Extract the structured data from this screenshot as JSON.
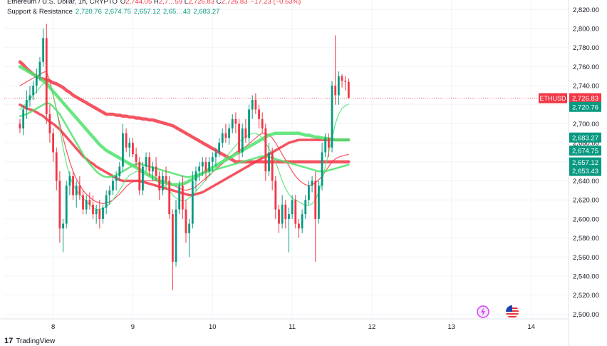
{
  "header": {
    "symbol_line": "Ethereum / U.S. Dollar, 1h, CRYPTO",
    "ohlc": [
      {
        "k": "O",
        "v": "2,744.05"
      },
      {
        "k": "H",
        "v": "2,7…59"
      },
      {
        "k": "L",
        "v": "2,726.83"
      },
      {
        "k": "C",
        "v": "2,726.83"
      }
    ],
    "change": "−17.23 (−0.63%)",
    "sr_label": "Support & Resistance",
    "sr_values": [
      "2,720.76",
      "2,674.75",
      "2,657.12",
      "2,65…43",
      "2,683.27"
    ]
  },
  "footer": {
    "brand": "TradingView"
  },
  "icons": {
    "left": "lightning-icon",
    "right": "us-flag-icon"
  },
  "chart_data": {
    "type": "candlestick",
    "symbol": "ETHUSD",
    "timeframe": "1h",
    "ylim": [
      2495,
      2830
    ],
    "y_ticks": [
      2500,
      2520,
      2540,
      2560,
      2580,
      2600,
      2620,
      2640,
      2660,
      2680,
      2700,
      2720,
      2740,
      2760,
      2780,
      2800,
      2820
    ],
    "x_ticks": [
      {
        "label": "8",
        "hour": 10
      },
      {
        "label": "9",
        "hour": 34
      },
      {
        "label": "10",
        "hour": 58
      },
      {
        "label": "11",
        "hour": 82
      },
      {
        "label": "12",
        "hour": 106
      },
      {
        "label": "13",
        "hour": 130
      },
      {
        "label": "14",
        "hour": 154
      }
    ],
    "price_labels": [
      {
        "text": "ETHUSD",
        "value": 2726.83,
        "color": "#f23645"
      },
      {
        "text": "2,726.83",
        "value": 2726.83,
        "color": "#f23645"
      },
      {
        "text": "2,720.76",
        "value": 2720.76,
        "color": "#089981"
      },
      {
        "text": "2,683.27",
        "value": 2683.27,
        "color": "#089981"
      },
      {
        "text": "2,674.75",
        "value": 2674.75,
        "color": "#089981"
      },
      {
        "text": "2,657.12",
        "value": 2657.12,
        "color": "#089981"
      },
      {
        "text": "2,653.43",
        "value": 2653.43,
        "color": "#089981"
      }
    ],
    "candles": [
      [
        2700,
        2705,
        2690,
        2695
      ],
      [
        2695,
        2720,
        2688,
        2715
      ],
      [
        2715,
        2735,
        2705,
        2725
      ],
      [
        2725,
        2740,
        2718,
        2730
      ],
      [
        2730,
        2745,
        2725,
        2740
      ],
      [
        2740,
        2758,
        2732,
        2750
      ],
      [
        2750,
        2770,
        2745,
        2765
      ],
      [
        2765,
        2800,
        2760,
        2790
      ],
      [
        2790,
        2805,
        2700,
        2710
      ],
      [
        2710,
        2720,
        2680,
        2690
      ],
      [
        2690,
        2695,
        2660,
        2670
      ],
      [
        2670,
        2675,
        2630,
        2640
      ],
      [
        2640,
        2650,
        2575,
        2590
      ],
      [
        2590,
        2600,
        2565,
        2595
      ],
      [
        2595,
        2640,
        2590,
        2635
      ],
      [
        2635,
        2650,
        2625,
        2645
      ],
      [
        2645,
        2650,
        2620,
        2625
      ],
      [
        2625,
        2640,
        2612,
        2635
      ],
      [
        2635,
        2645,
        2620,
        2625
      ],
      [
        2625,
        2630,
        2605,
        2610
      ],
      [
        2610,
        2625,
        2605,
        2620
      ],
      [
        2620,
        2628,
        2610,
        2615
      ],
      [
        2615,
        2625,
        2600,
        2605
      ],
      [
        2605,
        2615,
        2595,
        2610
      ],
      [
        2610,
        2620,
        2590,
        2600
      ],
      [
        2600,
        2615,
        2595,
        2612
      ],
      [
        2612,
        2630,
        2605,
        2625
      ],
      [
        2625,
        2635,
        2615,
        2630
      ],
      [
        2630,
        2645,
        2625,
        2640
      ],
      [
        2640,
        2650,
        2630,
        2645
      ],
      [
        2645,
        2660,
        2640,
        2655
      ],
      [
        2655,
        2700,
        2650,
        2690
      ],
      [
        2690,
        2695,
        2670,
        2675
      ],
      [
        2675,
        2685,
        2665,
        2680
      ],
      [
        2680,
        2685,
        2665,
        2668
      ],
      [
        2668,
        2675,
        2655,
        2660
      ],
      [
        2660,
        2665,
        2625,
        2630
      ],
      [
        2630,
        2660,
        2625,
        2655
      ],
      [
        2655,
        2670,
        2650,
        2665
      ],
      [
        2665,
        2670,
        2645,
        2650
      ],
      [
        2650,
        2660,
        2640,
        2655
      ],
      [
        2655,
        2665,
        2640,
        2645
      ],
      [
        2645,
        2650,
        2620,
        2630
      ],
      [
        2630,
        2650,
        2625,
        2645
      ],
      [
        2645,
        2655,
        2635,
        2640
      ],
      [
        2640,
        2645,
        2600,
        2605
      ],
      [
        2605,
        2610,
        2525,
        2555
      ],
      [
        2555,
        2620,
        2550,
        2610
      ],
      [
        2610,
        2640,
        2605,
        2635
      ],
      [
        2635,
        2645,
        2600,
        2610
      ],
      [
        2610,
        2620,
        2575,
        2585
      ],
      [
        2585,
        2600,
        2560,
        2595
      ],
      [
        2595,
        2650,
        2590,
        2640
      ],
      [
        2640,
        2655,
        2630,
        2650
      ],
      [
        2650,
        2660,
        2640,
        2655
      ],
      [
        2655,
        2665,
        2645,
        2660
      ],
      [
        2660,
        2665,
        2640,
        2650
      ],
      [
        2650,
        2665,
        2645,
        2660
      ],
      [
        2660,
        2670,
        2650,
        2665
      ],
      [
        2665,
        2675,
        2655,
        2670
      ],
      [
        2670,
        2685,
        2665,
        2680
      ],
      [
        2680,
        2695,
        2675,
        2690
      ],
      [
        2690,
        2700,
        2680,
        2685
      ],
      [
        2685,
        2700,
        2678,
        2695
      ],
      [
        2695,
        2710,
        2690,
        2705
      ],
      [
        2705,
        2712,
        2690,
        2700
      ],
      [
        2700,
        2705,
        2660,
        2670
      ],
      [
        2670,
        2700,
        2665,
        2695
      ],
      [
        2695,
        2705,
        2680,
        2685
      ],
      [
        2685,
        2720,
        2680,
        2715
      ],
      [
        2715,
        2730,
        2705,
        2725
      ],
      [
        2725,
        2732,
        2710,
        2715
      ],
      [
        2715,
        2720,
        2695,
        2705
      ],
      [
        2705,
        2712,
        2690,
        2695
      ],
      [
        2695,
        2700,
        2640,
        2650
      ],
      [
        2650,
        2680,
        2645,
        2670
      ],
      [
        2670,
        2675,
        2630,
        2640
      ],
      [
        2640,
        2645,
        2600,
        2610
      ],
      [
        2610,
        2615,
        2585,
        2595
      ],
      [
        2595,
        2625,
        2590,
        2615
      ],
      [
        2615,
        2620,
        2590,
        2600
      ],
      [
        2600,
        2612,
        2565,
        2605
      ],
      [
        2605,
        2625,
        2600,
        2620
      ],
      [
        2620,
        2625,
        2590,
        2595
      ],
      [
        2595,
        2600,
        2580,
        2590
      ],
      [
        2590,
        2610,
        2585,
        2605
      ],
      [
        2605,
        2625,
        2600,
        2620
      ],
      [
        2620,
        2640,
        2615,
        2635
      ],
      [
        2635,
        2645,
        2628,
        2640
      ],
      [
        2640,
        2650,
        2555,
        2600
      ],
      [
        2600,
        2640,
        2595,
        2635
      ],
      [
        2635,
        2680,
        2630,
        2670
      ],
      [
        2670,
        2690,
        2665,
        2685
      ],
      [
        2685,
        2690,
        2665,
        2675
      ],
      [
        2675,
        2745,
        2670,
        2740
      ],
      [
        2740,
        2793,
        2720,
        2730
      ],
      [
        2730,
        2755,
        2720,
        2750
      ],
      [
        2750,
        2752,
        2738,
        2745
      ],
      [
        2745,
        2750,
        2735,
        2744
      ],
      [
        2744.05,
        2747.59,
        2726.83,
        2726.83
      ]
    ],
    "overlays": [
      {
        "name": "",
        "color": "#f23645",
        "width": 4.5,
        "values": [
          2765,
          2762,
          2758,
          2755,
          2752,
          2750,
          2748,
          2747,
          2746,
          2745,
          2743,
          2742,
          2740,
          2738,
          2735,
          2733,
          2730,
          2728,
          2726,
          2724,
          2722,
          2720,
          2718,
          2716,
          2714,
          2712,
          2710,
          2710,
          2710,
          2709,
          2709,
          2708,
          2708,
          2707,
          2707,
          2706,
          2706,
          2705,
          2705,
          2704,
          2704,
          2703,
          2702,
          2701,
          2700,
          2699,
          2698,
          2696,
          2694,
          2692,
          2690,
          2688,
          2686,
          2684,
          2682,
          2680,
          2678,
          2676,
          2674,
          2672,
          2670,
          2668,
          2666,
          2664,
          2662,
          2660,
          2660,
          2660,
          2660,
          2660,
          2660,
          2660,
          2660,
          2660,
          2660,
          2660,
          2660,
          2660,
          2660,
          2660,
          2660,
          2660,
          2660,
          2660,
          2660,
          2660,
          2660,
          2660,
          2660,
          2660,
          2660,
          2660,
          2660,
          2660,
          2660,
          2660,
          2660,
          2660,
          2660,
          2660
        ]
      },
      {
        "name": "",
        "color": "#f23645",
        "width": 3.5,
        "values": [
          2720,
          2718,
          2716,
          2715,
          2714,
          2712,
          2710,
          2708,
          2705,
          2702,
          2700,
          2697,
          2694,
          2690,
          2686,
          2682,
          2678,
          2674,
          2670,
          2666,
          2663,
          2660,
          2658,
          2655,
          2653,
          2651,
          2649,
          2647,
          2645,
          2643,
          2641,
          2640,
          2640,
          2640,
          2640,
          2640,
          2640,
          2639,
          2638,
          2637,
          2636,
          2635,
          2634,
          2633,
          2632,
          2631,
          2630,
          2629,
          2628,
          2627,
          2626,
          2625,
          2625,
          2626,
          2627,
          2628,
          2630,
          2632,
          2634,
          2636,
          2638,
          2640,
          2642,
          2644,
          2646,
          2648,
          2650,
          2652,
          2654,
          2656,
          2658,
          2660,
          2662,
          2664,
          2666,
          2668,
          2670,
          2672,
          2674,
          2676,
          2678,
          2680,
          2681,
          2682,
          2683,
          2683,
          2683,
          2683,
          2683,
          2683,
          2683,
          2683,
          2683,
          2683,
          2683,
          2683,
          2683,
          2683,
          2683,
          2683
        ]
      },
      {
        "name": "",
        "color": "#f23645",
        "width": 1.2,
        "values": [
          2740,
          2742,
          2744,
          2746,
          2748,
          2750,
          2752,
          2754,
          2755,
          2745,
          2730,
          2715,
          2700,
          2685,
          2672,
          2660,
          2650,
          2642,
          2636,
          2630,
          2626,
          2623,
          2620,
          2618,
          2617,
          2616,
          2617,
          2618,
          2620,
          2623,
          2626,
          2630,
          2634,
          2637,
          2639,
          2640,
          2640,
          2640,
          2640,
          2640,
          2640,
          2640,
          2640,
          2640,
          2639,
          2638,
          2636,
          2634,
          2632,
          2631,
          2630,
          2631,
          2632,
          2634,
          2637,
          2640,
          2643,
          2646,
          2649,
          2652,
          2655,
          2658,
          2661,
          2664,
          2667,
          2670,
          2672,
          2674,
          2676,
          2679,
          2682,
          2685,
          2688,
          2690,
          2690,
          2688,
          2685,
          2680,
          2674,
          2668,
          2662,
          2656,
          2650,
          2645,
          2641,
          2638,
          2636,
          2635,
          2636,
          2638,
          2641,
          2645,
          2650,
          2655,
          2660,
          2663,
          2665,
          2666,
          2667,
          2668
        ]
      },
      {
        "name": "",
        "color": "#4ce36b",
        "width": 4.5,
        "values": [
          2760,
          2758,
          2756,
          2754,
          2752,
          2750,
          2748,
          2745,
          2742,
          2738,
          2734,
          2730,
          2726,
          2722,
          2718,
          2714,
          2710,
          2706,
          2702,
          2698,
          2694,
          2690,
          2686,
          2682,
          2678,
          2675,
          2672,
          2670,
          2668,
          2666,
          2664,
          2662,
          2660,
          2658,
          2656,
          2654,
          2652,
          2650,
          2648,
          2646,
          2644,
          2642,
          2640,
          2639,
          2638,
          2637,
          2636,
          2636,
          2636,
          2637,
          2638,
          2640,
          2642,
          2644,
          2646,
          2648,
          2650,
          2652,
          2654,
          2656,
          2658,
          2660,
          2662,
          2664,
          2666,
          2668,
          2670,
          2672,
          2674,
          2676,
          2678,
          2680,
          2682,
          2684,
          2686,
          2688,
          2689,
          2690,
          2690,
          2690,
          2690,
          2690,
          2690,
          2690,
          2690,
          2689,
          2688,
          2688,
          2687,
          2686,
          2686,
          2685,
          2685,
          2684,
          2684,
          2683,
          2683,
          2683,
          2683,
          2683
        ]
      },
      {
        "name": "",
        "color": "#4ce36b",
        "width": 2.5,
        "values": [
          2708,
          2709,
          2710,
          2712,
          2714,
          2716,
          2718,
          2720,
          2722,
          2721,
          2718,
          2714,
          2710,
          2704,
          2698,
          2692,
          2686,
          2680,
          2674,
          2668,
          2662,
          2658,
          2654,
          2650,
          2647,
          2645,
          2644,
          2644,
          2645,
          2646,
          2648,
          2650,
          2652,
          2654,
          2656,
          2658,
          2658,
          2657,
          2656,
          2655,
          2654,
          2653,
          2652,
          2651,
          2650,
          2649,
          2648,
          2647,
          2646,
          2645,
          2644,
          2644,
          2645,
          2646,
          2647,
          2648,
          2649,
          2650,
          2651,
          2652,
          2653,
          2654,
          2655,
          2656,
          2657,
          2658,
          2659,
          2660,
          2661,
          2662,
          2663,
          2664,
          2665,
          2666,
          2666,
          2665,
          2664,
          2663,
          2662,
          2661,
          2660,
          2659,
          2658,
          2657,
          2656,
          2655,
          2654,
          2653,
          2652,
          2651,
          2650,
          2650,
          2650,
          2651,
          2652,
          2653,
          2654,
          2655,
          2656,
          2657
        ]
      },
      {
        "name": "",
        "color": "#4ce36b",
        "width": 1.2,
        "values": [
          2715,
          2718,
          2722,
          2726,
          2730,
          2734,
          2738,
          2742,
          2746,
          2740,
          2730,
          2715,
          2695,
          2675,
          2658,
          2645,
          2636,
          2630,
          2626,
          2622,
          2618,
          2615,
          2612,
          2610,
          2610,
          2611,
          2613,
          2616,
          2620,
          2625,
          2630,
          2636,
          2642,
          2646,
          2648,
          2650,
          2650,
          2648,
          2646,
          2644,
          2642,
          2640,
          2638,
          2636,
          2634,
          2630,
          2625,
          2622,
          2620,
          2619,
          2620,
          2622,
          2625,
          2629,
          2633,
          2637,
          2641,
          2645,
          2649,
          2653,
          2657,
          2661,
          2665,
          2669,
          2673,
          2677,
          2681,
          2684,
          2686,
          2688,
          2690,
          2690,
          2688,
          2685,
          2680,
          2674,
          2668,
          2660,
          2650,
          2640,
          2632,
          2626,
          2622,
          2620,
          2618,
          2616,
          2614,
          2614,
          2616,
          2620,
          2628,
          2640,
          2655,
          2670,
          2685,
          2700,
          2710,
          2716,
          2719,
          2720.76
        ]
      }
    ]
  }
}
